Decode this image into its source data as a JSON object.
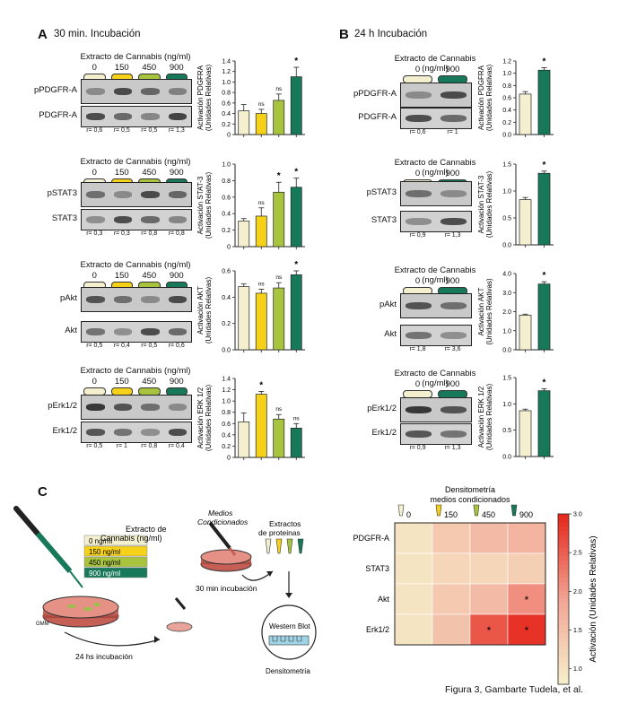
{
  "figure_caption": "Figura 3, Gambarte Tudela, et al.",
  "colors": {
    "c0": "#f3efcf",
    "c150": "#f5d11a",
    "c450": "#a8c43f",
    "c900": "#17785a"
  },
  "panelA": {
    "letter": "A",
    "title": "30 min. Incubación",
    "header": "Extracto de Cannabis (ng/ml)",
    "concs": [
      "0",
      "150",
      "450",
      "900"
    ],
    "blocks": [
      {
        "labels": [
          "pPDGFR-A",
          "PDGFR-A"
        ],
        "r": [
          "r= 0,6",
          "r= 0,5",
          "r= 0,5",
          "r= 1,3"
        ]
      },
      {
        "labels": [
          "pSTAT3",
          "STAT3"
        ],
        "r": [
          "r= 0,3",
          "r= 0,3",
          "r= 0,8",
          "r= 0,8"
        ]
      },
      {
        "labels": [
          "pAkt",
          "Akt"
        ],
        "r": [
          "r= 0,5",
          "r= 0,4",
          "r= 0,5",
          "r= 0,6"
        ]
      },
      {
        "labels": [
          "pErk1/2",
          "Erk1/2"
        ],
        "r": [
          "r= 0,5",
          "r= 1",
          "r= 0,8",
          "r= 0,4"
        ]
      }
    ]
  },
  "panelB": {
    "letter": "B",
    "title": "24 h Incubación",
    "header": "Extracto de Cannabis (ng/ml)",
    "concs": [
      "0",
      "900"
    ],
    "blocks": [
      {
        "labels": [
          "pPDGFR-A",
          "PDGFR-A"
        ],
        "r": [
          "r= 0,6",
          "r= 1"
        ]
      },
      {
        "labels": [
          "pSTAT3",
          "STAT3"
        ],
        "r": [
          "r= 0,9",
          "r= 1,3"
        ]
      },
      {
        "labels": [
          "pAkt",
          "Akt"
        ],
        "r": [
          "r= 1,8",
          "r= 3,6"
        ]
      },
      {
        "labels": [
          "pErk1/2",
          "Erk1/2"
        ],
        "r": [
          "r= 0,9",
          "r= 1,3"
        ]
      }
    ]
  },
  "chart_data": [
    {
      "type": "bar",
      "panel": "A",
      "ylabel": [
        "Activación PDGFRA",
        "(Unidades Relativas)"
      ],
      "ylim": [
        0,
        1.4
      ],
      "ticks": [
        "0",
        "0.2",
        "0.4",
        "0.6",
        "0.8",
        "1.0",
        "1.2",
        "1.4"
      ],
      "tickvals": [
        0,
        0.2,
        0.4,
        0.6,
        0.8,
        1.0,
        1.2,
        1.4
      ],
      "categories": [
        "0",
        "150",
        "450",
        "900"
      ],
      "values": [
        0.45,
        0.4,
        0.65,
        1.1
      ],
      "errors": [
        0.12,
        0.08,
        0.12,
        0.18
      ],
      "annotations": [
        "",
        "ns",
        "ns",
        "*"
      ]
    },
    {
      "type": "bar",
      "panel": "A",
      "ylabel": [
        "Activación STAT-3",
        "(Unidades Relativas)"
      ],
      "ylim": [
        0,
        1.0
      ],
      "ticks": [
        "0",
        "0.2",
        "0.4",
        "0.6",
        "0.8",
        "1.0"
      ],
      "tickvals": [
        0,
        0.2,
        0.4,
        0.6,
        0.8,
        1.0
      ],
      "categories": [
        "0",
        "150",
        "450",
        "900"
      ],
      "values": [
        0.31,
        0.37,
        0.66,
        0.72
      ],
      "errors": [
        0.03,
        0.1,
        0.12,
        0.11
      ],
      "annotations": [
        "",
        "ns",
        "*",
        "*"
      ]
    },
    {
      "type": "bar",
      "panel": "A",
      "ylabel": [
        "Activación AKT",
        "(Unidades Relativas)"
      ],
      "ylim": [
        0,
        0.6
      ],
      "ticks": [
        "0.0",
        "0.2",
        "0.4",
        "0.6"
      ],
      "tickvals": [
        0,
        0.2,
        0.4,
        0.6
      ],
      "categories": [
        "0",
        "150",
        "450",
        "900"
      ],
      "values": [
        0.48,
        0.43,
        0.47,
        0.57
      ],
      "errors": [
        0.02,
        0.03,
        0.04,
        0.03
      ],
      "annotations": [
        "",
        "ns",
        "ns",
        "*"
      ]
    },
    {
      "type": "bar",
      "panel": "A",
      "ylabel": [
        "Activación ERK 1/2",
        "(Unidades Relativas)"
      ],
      "ylim": [
        0,
        1.4
      ],
      "ticks": [
        "0",
        "0.2",
        "0.4",
        "0.6",
        "0.8",
        "1.0",
        "1.2",
        "1.4"
      ],
      "tickvals": [
        0,
        0.2,
        0.4,
        0.6,
        0.8,
        1.0,
        1.2,
        1.4
      ],
      "categories": [
        "0",
        "150",
        "450",
        "900"
      ],
      "values": [
        0.63,
        1.12,
        0.68,
        0.52
      ],
      "errors": [
        0.16,
        0.05,
        0.08,
        0.08
      ],
      "annotations": [
        "",
        "*",
        "ns",
        "ns"
      ]
    },
    {
      "type": "bar",
      "panel": "B",
      "ylabel": [
        "Activación PDGFRA",
        "(Unidades Relativas)"
      ],
      "ylim": [
        0,
        1.2
      ],
      "ticks": [
        "0.0",
        "0.2",
        "0.4",
        "0.6",
        "0.8",
        "1.0",
        "1.2"
      ],
      "tickvals": [
        0,
        0.2,
        0.4,
        0.6,
        0.8,
        1.0,
        1.2
      ],
      "categories": [
        "0",
        "900"
      ],
      "values": [
        0.66,
        1.05
      ],
      "errors": [
        0.04,
        0.04
      ],
      "annotations": [
        "",
        "*"
      ]
    },
    {
      "type": "bar",
      "panel": "B",
      "ylabel": [
        "Activación STAT-3",
        "(Unidades Relativas)"
      ],
      "ylim": [
        0,
        1.5
      ],
      "ticks": [
        "0.0",
        "0.5",
        "1.0",
        "1.5"
      ],
      "tickvals": [
        0,
        0.5,
        1.0,
        1.5
      ],
      "categories": [
        "0",
        "900"
      ],
      "values": [
        0.84,
        1.33
      ],
      "errors": [
        0.04,
        0.04
      ],
      "annotations": [
        "",
        "*"
      ]
    },
    {
      "type": "bar",
      "panel": "B",
      "ylabel": [
        "Activación AKT",
        "(Unidades Relativas)"
      ],
      "ylim": [
        0,
        4.0
      ],
      "ticks": [
        "0.0",
        "1.0",
        "2.0",
        "3.0",
        "4.0"
      ],
      "tickvals": [
        0,
        1,
        2,
        3,
        4
      ],
      "categories": [
        "0",
        "900"
      ],
      "values": [
        1.82,
        3.45
      ],
      "errors": [
        0.05,
        0.12
      ],
      "annotations": [
        "",
        "*"
      ]
    },
    {
      "type": "bar",
      "panel": "B",
      "ylabel": [
        "Activación ERK 1/2",
        "(Unidades Relativas)"
      ],
      "ylim": [
        0,
        1.5
      ],
      "ticks": [
        "0.0",
        "0.5",
        "1.0",
        "1.5"
      ],
      "tickvals": [
        0,
        0.5,
        1.0,
        1.5
      ],
      "categories": [
        "0",
        "900"
      ],
      "values": [
        0.87,
        1.25
      ],
      "errors": [
        0.03,
        0.04
      ],
      "annotations": [
        "",
        "*"
      ]
    },
    {
      "type": "heatmap",
      "panel": "C",
      "title": [
        "Densitometría",
        "medios condicionados"
      ],
      "columns": [
        "0",
        "150",
        "450",
        "900"
      ],
      "rows": [
        "PDGFR-A",
        "STAT3",
        "Akt",
        "Erk1/2"
      ],
      "values": [
        [
          1.0,
          1.4,
          1.6,
          1.7
        ],
        [
          1.0,
          1.2,
          1.2,
          1.3
        ],
        [
          1.0,
          1.4,
          1.6,
          2.1
        ],
        [
          1.0,
          1.5,
          2.6,
          2.9
        ]
      ],
      "stars": [
        [
          false,
          false,
          false,
          false
        ],
        [
          false,
          false,
          false,
          false
        ],
        [
          false,
          false,
          false,
          true
        ],
        [
          false,
          false,
          true,
          true
        ]
      ],
      "colorbar_label": "Activación (Unidades Relativas)",
      "colorbar_ticks": [
        "1.0",
        "1.5",
        "2.0",
        "2.5",
        "3.0"
      ],
      "colorbar_range": [
        0.8,
        3.0
      ]
    }
  ],
  "panelC": {
    "letter": "C",
    "extract_label": [
      "Extracto de",
      "Cannabis (ng/ml)"
    ],
    "legend": [
      "0 ng/ml",
      "150 ng/ml",
      "450 ng/ml",
      "900 ng/ml"
    ],
    "gmm": "GMM",
    "incub24": "24 hs incubación",
    "medios": [
      "Medios",
      "Condicionados"
    ],
    "incub30": "30 min incubación",
    "extractos": [
      "Extractos",
      "de proteinas"
    ],
    "western": "Western Blot",
    "densito": "Densitometría"
  }
}
